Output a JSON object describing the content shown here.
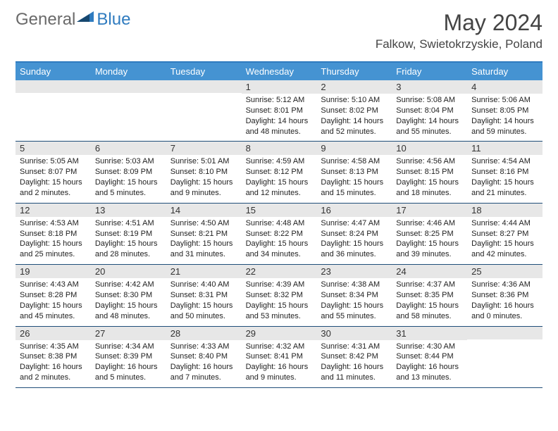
{
  "logo": {
    "general": "General",
    "blue": "Blue"
  },
  "title": "May 2024",
  "location": "Falkow, Swietokrzyskie, Poland",
  "colors": {
    "header_bg": "#4593d2",
    "border_top": "#2f7bbf",
    "row_border": "#1f4e79",
    "daynum_bg": "#e7e7e7",
    "text": "#222222",
    "title_text": "#444444"
  },
  "day_labels": [
    "Sunday",
    "Monday",
    "Tuesday",
    "Wednesday",
    "Thursday",
    "Friday",
    "Saturday"
  ],
  "weeks": [
    [
      null,
      null,
      null,
      {
        "n": "1",
        "sr": "5:12 AM",
        "ss": "8:01 PM",
        "dl": "14 hours and 48 minutes."
      },
      {
        "n": "2",
        "sr": "5:10 AM",
        "ss": "8:02 PM",
        "dl": "14 hours and 52 minutes."
      },
      {
        "n": "3",
        "sr": "5:08 AM",
        "ss": "8:04 PM",
        "dl": "14 hours and 55 minutes."
      },
      {
        "n": "4",
        "sr": "5:06 AM",
        "ss": "8:05 PM",
        "dl": "14 hours and 59 minutes."
      }
    ],
    [
      {
        "n": "5",
        "sr": "5:05 AM",
        "ss": "8:07 PM",
        "dl": "15 hours and 2 minutes."
      },
      {
        "n": "6",
        "sr": "5:03 AM",
        "ss": "8:09 PM",
        "dl": "15 hours and 5 minutes."
      },
      {
        "n": "7",
        "sr": "5:01 AM",
        "ss": "8:10 PM",
        "dl": "15 hours and 9 minutes."
      },
      {
        "n": "8",
        "sr": "4:59 AM",
        "ss": "8:12 PM",
        "dl": "15 hours and 12 minutes."
      },
      {
        "n": "9",
        "sr": "4:58 AM",
        "ss": "8:13 PM",
        "dl": "15 hours and 15 minutes."
      },
      {
        "n": "10",
        "sr": "4:56 AM",
        "ss": "8:15 PM",
        "dl": "15 hours and 18 minutes."
      },
      {
        "n": "11",
        "sr": "4:54 AM",
        "ss": "8:16 PM",
        "dl": "15 hours and 21 minutes."
      }
    ],
    [
      {
        "n": "12",
        "sr": "4:53 AM",
        "ss": "8:18 PM",
        "dl": "15 hours and 25 minutes."
      },
      {
        "n": "13",
        "sr": "4:51 AM",
        "ss": "8:19 PM",
        "dl": "15 hours and 28 minutes."
      },
      {
        "n": "14",
        "sr": "4:50 AM",
        "ss": "8:21 PM",
        "dl": "15 hours and 31 minutes."
      },
      {
        "n": "15",
        "sr": "4:48 AM",
        "ss": "8:22 PM",
        "dl": "15 hours and 34 minutes."
      },
      {
        "n": "16",
        "sr": "4:47 AM",
        "ss": "8:24 PM",
        "dl": "15 hours and 36 minutes."
      },
      {
        "n": "17",
        "sr": "4:46 AM",
        "ss": "8:25 PM",
        "dl": "15 hours and 39 minutes."
      },
      {
        "n": "18",
        "sr": "4:44 AM",
        "ss": "8:27 PM",
        "dl": "15 hours and 42 minutes."
      }
    ],
    [
      {
        "n": "19",
        "sr": "4:43 AM",
        "ss": "8:28 PM",
        "dl": "15 hours and 45 minutes."
      },
      {
        "n": "20",
        "sr": "4:42 AM",
        "ss": "8:30 PM",
        "dl": "15 hours and 48 minutes."
      },
      {
        "n": "21",
        "sr": "4:40 AM",
        "ss": "8:31 PM",
        "dl": "15 hours and 50 minutes."
      },
      {
        "n": "22",
        "sr": "4:39 AM",
        "ss": "8:32 PM",
        "dl": "15 hours and 53 minutes."
      },
      {
        "n": "23",
        "sr": "4:38 AM",
        "ss": "8:34 PM",
        "dl": "15 hours and 55 minutes."
      },
      {
        "n": "24",
        "sr": "4:37 AM",
        "ss": "8:35 PM",
        "dl": "15 hours and 58 minutes."
      },
      {
        "n": "25",
        "sr": "4:36 AM",
        "ss": "8:36 PM",
        "dl": "16 hours and 0 minutes."
      }
    ],
    [
      {
        "n": "26",
        "sr": "4:35 AM",
        "ss": "8:38 PM",
        "dl": "16 hours and 2 minutes."
      },
      {
        "n": "27",
        "sr": "4:34 AM",
        "ss": "8:39 PM",
        "dl": "16 hours and 5 minutes."
      },
      {
        "n": "28",
        "sr": "4:33 AM",
        "ss": "8:40 PM",
        "dl": "16 hours and 7 minutes."
      },
      {
        "n": "29",
        "sr": "4:32 AM",
        "ss": "8:41 PM",
        "dl": "16 hours and 9 minutes."
      },
      {
        "n": "30",
        "sr": "4:31 AM",
        "ss": "8:42 PM",
        "dl": "16 hours and 11 minutes."
      },
      {
        "n": "31",
        "sr": "4:30 AM",
        "ss": "8:44 PM",
        "dl": "16 hours and 13 minutes."
      },
      null
    ]
  ],
  "labels": {
    "sunrise": "Sunrise:",
    "sunset": "Sunset:",
    "daylight": "Daylight:"
  }
}
